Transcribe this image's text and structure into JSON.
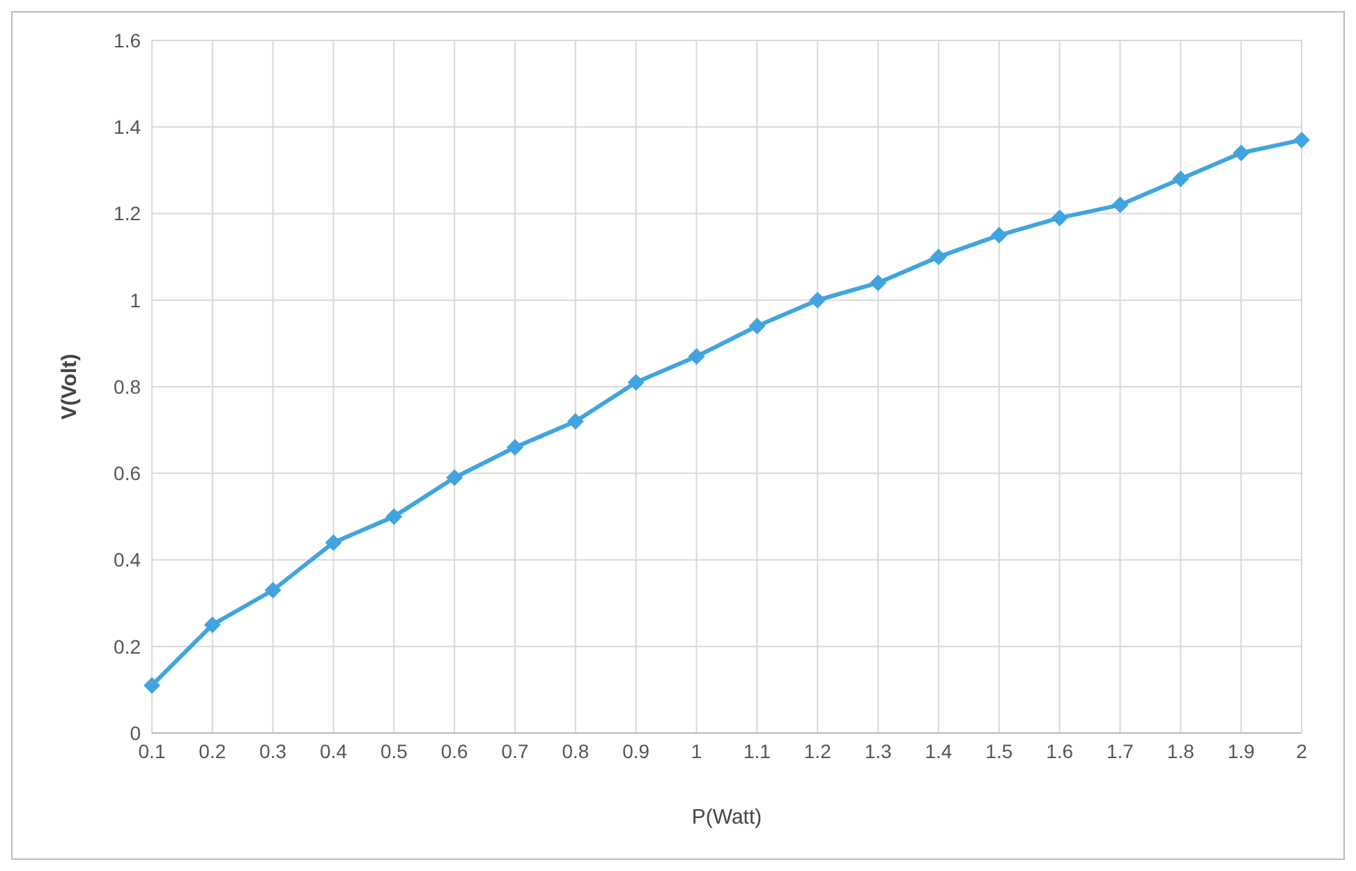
{
  "chart_data": {
    "type": "line",
    "xlabel": "P(Watt)",
    "ylabel": "V(Volt)",
    "categories": [
      "0.1",
      "0.2",
      "0.3",
      "0.4",
      "0.5",
      "0.6",
      "0.7",
      "0.8",
      "0.9",
      "1",
      "1.1",
      "1.2",
      "1.3",
      "1.4",
      "1.5",
      "1.6",
      "1.7",
      "1.8",
      "1.9",
      "2"
    ],
    "series": [
      {
        "color": "#41a4e0",
        "values": [
          0.11,
          0.25,
          0.33,
          0.44,
          0.5,
          0.59,
          0.66,
          0.72,
          0.81,
          0.87,
          0.94,
          1.0,
          1.04,
          1.1,
          1.15,
          1.19,
          1.22,
          1.28,
          1.34,
          1.37
        ]
      }
    ],
    "ylim": [
      0,
      1.6
    ],
    "yticks": [
      0,
      0.2,
      0.4,
      0.6,
      0.8,
      1,
      1.2,
      1.4,
      1.6
    ],
    "grid": true,
    "marker": "diamond",
    "line_style": "solid"
  }
}
